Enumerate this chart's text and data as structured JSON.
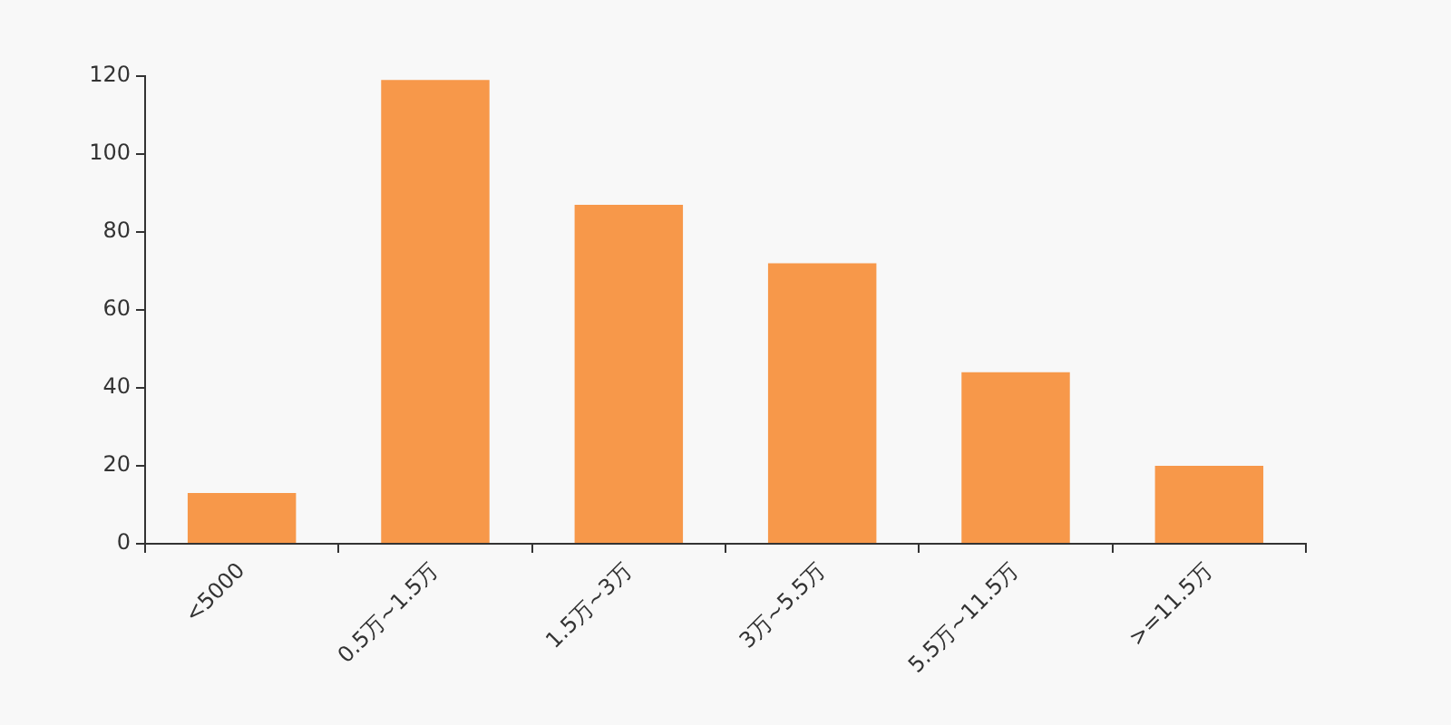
{
  "chart_data": {
    "type": "bar",
    "categories": [
      "<5000",
      "0.5万~1.5万",
      "1.5万~3万",
      "3万~5.5万",
      "5.5万~11.5万",
      ">=11.5万"
    ],
    "values": [
      13,
      119,
      87,
      72,
      44,
      20
    ],
    "color": "#f7984a",
    "ylim": [
      0,
      120
    ],
    "yticks": [
      0,
      20,
      40,
      60,
      80,
      100,
      120
    ],
    "grid": false,
    "legend": false
  }
}
